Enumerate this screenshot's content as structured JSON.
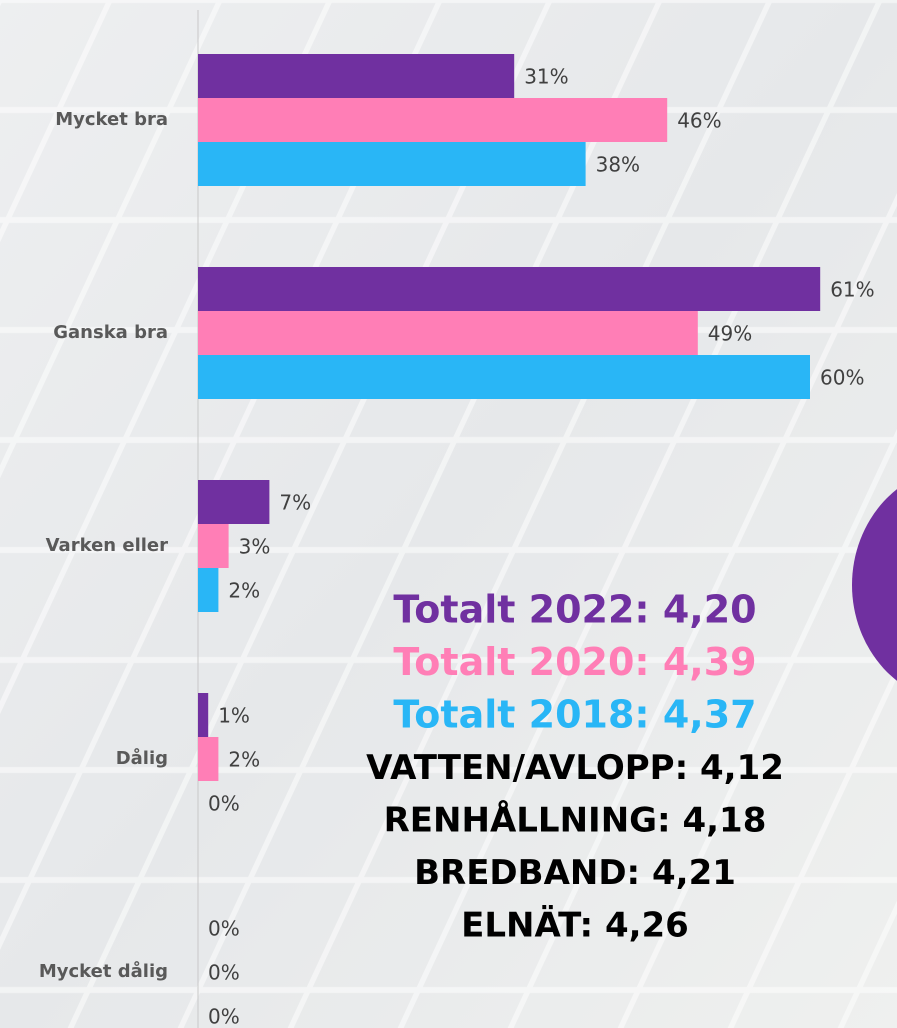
{
  "chart_data": {
    "type": "barh",
    "categories": [
      "Mycket bra",
      "Ganska bra",
      "Varken eller",
      "Dålig",
      "Mycket dålig"
    ],
    "series": [
      {
        "color": "#7030a0",
        "values": [
          31,
          61,
          7,
          1,
          0
        ],
        "value_labels": [
          "31%",
          "61%",
          "7%",
          "1%",
          "0%"
        ]
      },
      {
        "color": "#ff7eb6",
        "values": [
          46,
          49,
          3,
          2,
          0
        ],
        "value_labels": [
          "46%",
          "49%",
          "3%",
          "2%",
          "0%"
        ]
      },
      {
        "color": "#29b6f6",
        "values": [
          38,
          60,
          2,
          0,
          0
        ],
        "value_labels": [
          "38%",
          "60%",
          "2%",
          "0%",
          "0%"
        ]
      }
    ],
    "xlim": [
      0,
      70
    ],
    "annotations": [
      {
        "text": "Totalt 2022: 4,20",
        "color": "#7030a0"
      },
      {
        "text": "Totalt 2020: 4,39",
        "color": "#ff7eb6"
      },
      {
        "text": "Totalt 2018: 4,37",
        "color": "#29b6f6"
      },
      {
        "text": "VATTEN/AVLOPP: 4,12",
        "color": "#000000"
      },
      {
        "text": "RENHÅLLNING: 4,18",
        "color": "#000000"
      },
      {
        "text": "BREDBAND: 4,21",
        "color": "#000000"
      },
      {
        "text": "ELNÄT: 4,26",
        "color": "#000000"
      }
    ]
  }
}
